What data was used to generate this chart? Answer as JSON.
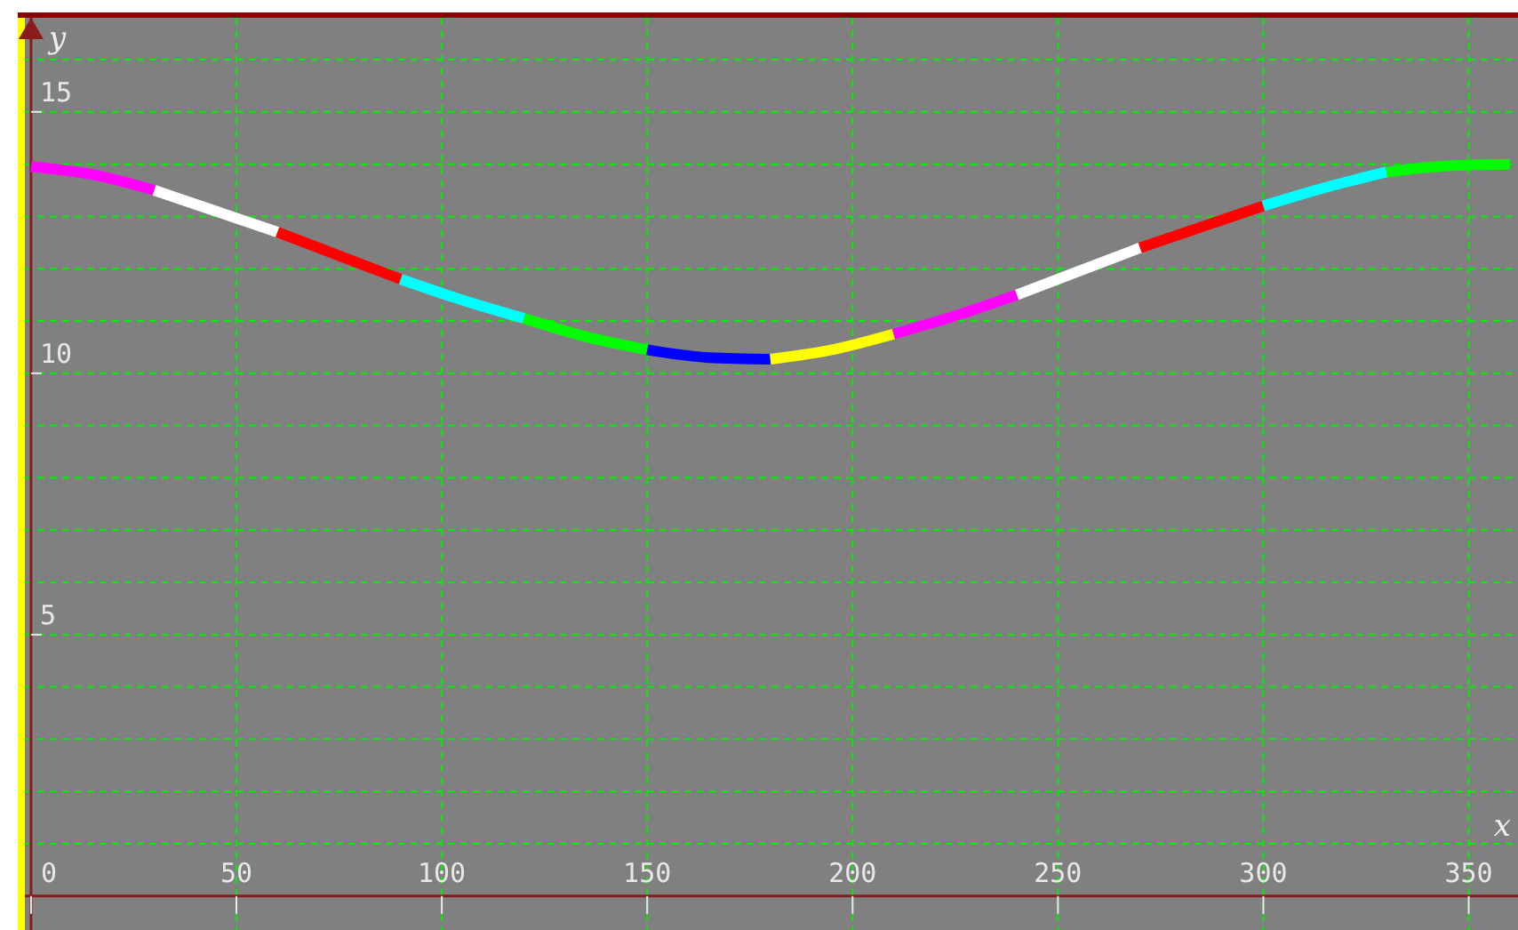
{
  "chart_data": {
    "type": "line",
    "xlabel": "x",
    "ylabel": "y",
    "xlim": [
      -1.5,
      362
    ],
    "ylim": [
      -0.65,
      16.8
    ],
    "xticks": [
      0,
      50,
      100,
      150,
      200,
      250,
      300,
      350
    ],
    "yticks": [
      {
        "value": 0,
        "label": null
      },
      {
        "value": 1,
        "label": null
      },
      {
        "value": 2,
        "label": null
      },
      {
        "value": 3,
        "label": null
      },
      {
        "value": 4,
        "label": null
      },
      5,
      {
        "value": 6,
        "label": null
      },
      {
        "value": 7,
        "label": null
      },
      {
        "value": 8,
        "label": null
      },
      {
        "value": 9,
        "label": null
      },
      10,
      {
        "value": 11,
        "label": null
      },
      {
        "value": 12,
        "label": null
      },
      {
        "value": 13,
        "label": null
      },
      {
        "value": 14,
        "label": null
      },
      15,
      {
        "value": 16,
        "label": null
      }
    ],
    "grid": true,
    "series": [
      {
        "color": "#ff00ff",
        "x": [
          0,
          15,
          30
        ],
        "values": [
          13.95,
          13.8,
          13.5
        ]
      },
      {
        "color": "#ffffff",
        "x": [
          30,
          45,
          60
        ],
        "values": [
          13.5,
          13.1,
          12.7
        ]
      },
      {
        "color": "#ff0000",
        "x": [
          60,
          75,
          90
        ],
        "values": [
          12.7,
          12.25,
          11.8
        ]
      },
      {
        "color": "#00ffff",
        "x": [
          90,
          105,
          120
        ],
        "values": [
          11.8,
          11.4,
          11.05
        ]
      },
      {
        "color": "#00ff00",
        "x": [
          120,
          135,
          150
        ],
        "values": [
          11.05,
          10.7,
          10.45
        ]
      },
      {
        "color": "#0000ff",
        "x": [
          150,
          165,
          180
        ],
        "values": [
          10.45,
          10.3,
          10.27
        ]
      },
      {
        "color": "#ffff00",
        "x": [
          180,
          195,
          210
        ],
        "values": [
          10.27,
          10.45,
          10.75
        ]
      },
      {
        "color": "#ff00ff",
        "x": [
          210,
          225,
          240
        ],
        "values": [
          10.75,
          11.1,
          11.5
        ]
      },
      {
        "color": "#ffffff",
        "x": [
          240,
          255,
          270
        ],
        "values": [
          11.5,
          11.95,
          12.4
        ]
      },
      {
        "color": "#ff0000",
        "x": [
          270,
          285,
          300
        ],
        "values": [
          12.4,
          12.8,
          13.2
        ]
      },
      {
        "color": "#00ffff",
        "x": [
          300,
          315,
          330
        ],
        "values": [
          13.2,
          13.55,
          13.85
        ]
      },
      {
        "color": "#00ff00",
        "x": [
          330,
          345,
          360
        ],
        "values": [
          13.85,
          13.97,
          14.0
        ]
      }
    ]
  }
}
